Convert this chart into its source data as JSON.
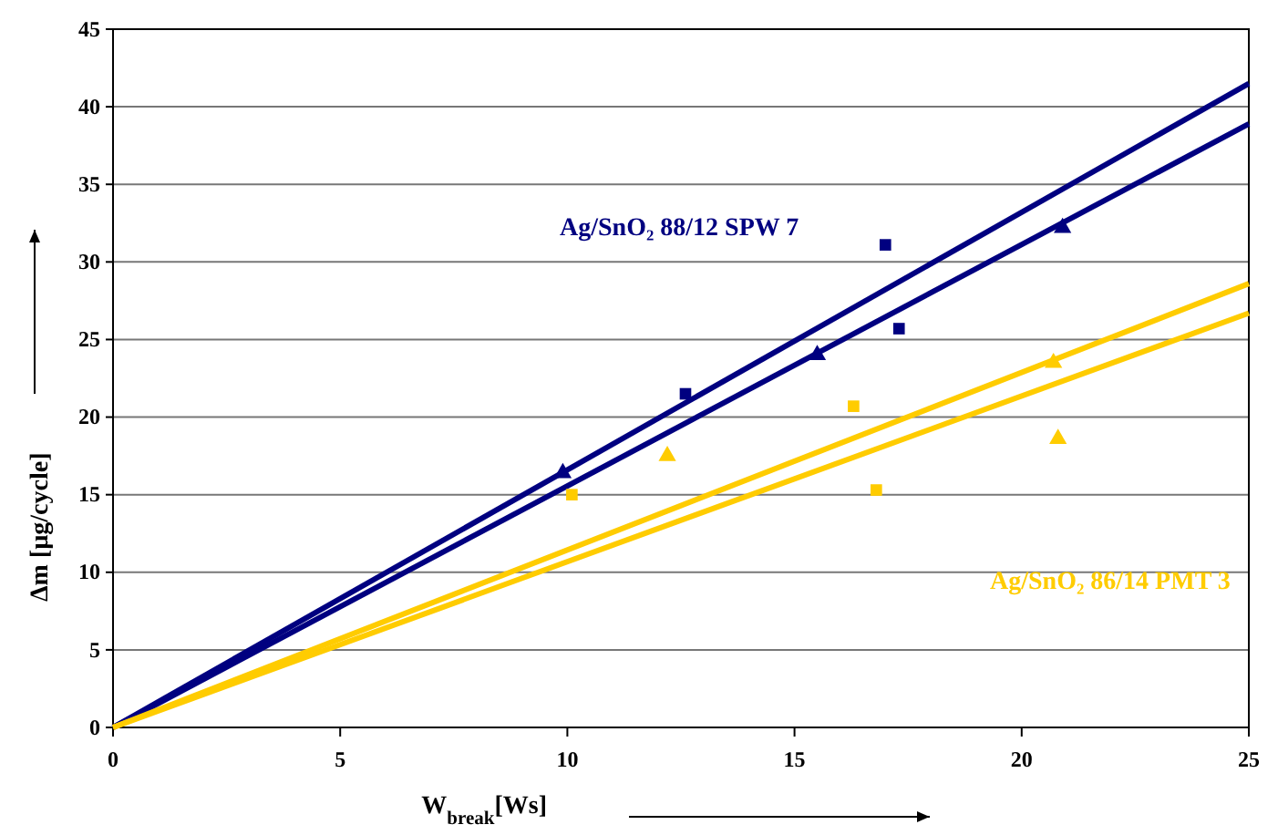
{
  "chart_data": {
    "type": "scatter",
    "xlabel": "W$_{break}$[Ws]",
    "ylabel": "Δm  [µg/cycle]",
    "xlim": [
      0,
      25
    ],
    "ylim": [
      0,
      45
    ],
    "xticks": [
      0,
      5,
      10,
      15,
      20,
      25
    ],
    "yticks": [
      0,
      5,
      10,
      15,
      20,
      25,
      30,
      35,
      40,
      45
    ],
    "grid": "y",
    "series": [
      {
        "marker": "square",
        "color": "#000080",
        "x": [
          12.6,
          17.0,
          17.3
        ],
        "values": [
          21.5,
          31.1,
          25.7
        ]
      },
      {
        "marker": "triangle",
        "color": "#000080",
        "x": [
          9.9,
          15.5,
          20.9
        ],
        "values": [
          16.4,
          24.0,
          32.2
        ]
      },
      {
        "marker": "square",
        "color": "#ffcc00",
        "x": [
          10.1,
          16.3,
          16.8
        ],
        "values": [
          15.0,
          20.7,
          15.3
        ]
      },
      {
        "marker": "triangle",
        "color": "#ffcc00",
        "x": [
          12.2,
          20.7,
          20.8
        ],
        "values": [
          17.5,
          23.5,
          18.6
        ]
      },
      {
        "type": "line",
        "color": "#000080",
        "x": [
          0,
          25
        ],
        "values": [
          0,
          41.5
        ]
      },
      {
        "type": "line",
        "color": "#000080",
        "x": [
          0,
          25
        ],
        "values": [
          0,
          38.9
        ]
      },
      {
        "type": "line",
        "color": "#ffcc00",
        "x": [
          0,
          25
        ],
        "values": [
          0,
          28.6
        ]
      },
      {
        "type": "line",
        "color": "#ffcc00",
        "x": [
          0,
          25
        ],
        "values": [
          0,
          26.7
        ]
      }
    ],
    "annotations": [
      "Ag/SnO₂ 88/12 SPW 7",
      "Ag/SnO₂ 86/14 PMT 3"
    ]
  }
}
